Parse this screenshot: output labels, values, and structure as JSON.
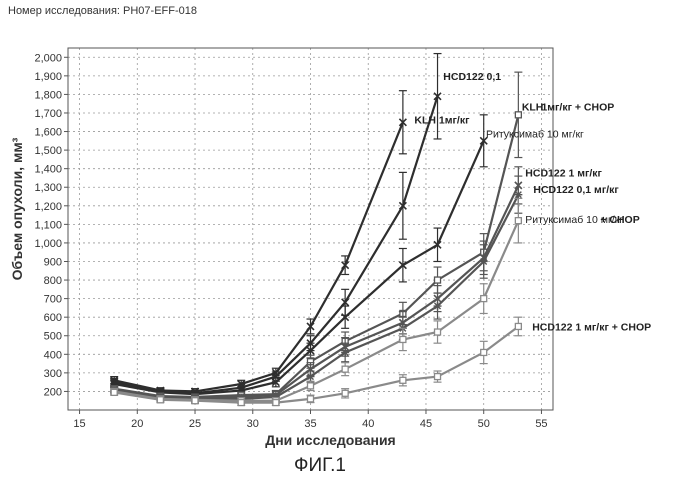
{
  "header": {
    "study_number": "Номер исследования: PH07-EFF-018"
  },
  "figure_caption": "ФИГ.1",
  "colors": {
    "dark": "#2e2e2e",
    "mid": "#555555",
    "light": "#8a8a8a",
    "grid": "#9a9a9a"
  },
  "chart_data": {
    "type": "line",
    "title": "",
    "xlabel": "Дни исследования",
    "ylabel": "Объем опухоли, мм³",
    "xlim": [
      14,
      56
    ],
    "ylim": [
      100,
      2050
    ],
    "xticks": [
      15,
      20,
      25,
      30,
      35,
      40,
      45,
      50,
      55
    ],
    "yticks": [
      200,
      300,
      400,
      500,
      600,
      700,
      800,
      900,
      1000,
      1100,
      1200,
      1300,
      1400,
      1500,
      1600,
      1700,
      1800,
      1900,
      2000
    ],
    "ytick_labels": [
      "200",
      "300",
      "400",
      "500",
      "600",
      "700",
      "800",
      "900",
      "1,000",
      "1,100",
      "1,200",
      "1,300",
      "1,400",
      "1,500",
      "1,600",
      "1,700",
      "1,800",
      "1,900",
      "2,000"
    ],
    "grid": true,
    "x": [
      18,
      22,
      25,
      29,
      32,
      35,
      38,
      43,
      46,
      50,
      53
    ],
    "series": [
      {
        "name": "KLH 1мг/кг",
        "tone": "dark",
        "values": [
          260,
          205,
          200,
          240,
          300,
          550,
          880,
          1650,
          null,
          null,
          null
        ],
        "errors": [
          20,
          15,
          15,
          20,
          25,
          40,
          50,
          170,
          null,
          null,
          null
        ]
      },
      {
        "name": "HCD122 0,1",
        "tone": "dark",
        "values": [
          250,
          200,
          190,
          220,
          280,
          460,
          680,
          1200,
          1790,
          null,
          null
        ],
        "errors": [
          20,
          15,
          15,
          20,
          25,
          40,
          70,
          180,
          230,
          null,
          null
        ]
      },
      {
        "name": "Ритуксимаб 10 мг/кг",
        "tone": "dark",
        "values": [
          240,
          195,
          185,
          205,
          250,
          420,
          600,
          880,
          990,
          1550,
          null
        ],
        "errors": [
          20,
          15,
          15,
          20,
          25,
          40,
          60,
          90,
          90,
          140,
          null
        ]
      },
      {
        "name": "KLH 1мг/кг + CHOP",
        "tone": "mid",
        "values": [
          215,
          175,
          170,
          180,
          185,
          360,
          470,
          620,
          800,
          950,
          1690
        ],
        "errors": [
          15,
          15,
          15,
          15,
          20,
          35,
          50,
          60,
          70,
          100,
          230
        ]
      },
      {
        "name": "HCD122 1 мг/кг",
        "tone": "mid",
        "values": [
          210,
          170,
          165,
          170,
          180,
          320,
          440,
          570,
          700,
          920,
          1310
        ],
        "errors": [
          15,
          15,
          15,
          15,
          20,
          35,
          50,
          60,
          70,
          90,
          100
        ]
      },
      {
        "name": "HCD122 0,1 мг/кг",
        "tone": "mid",
        "values": [
          205,
          165,
          160,
          160,
          170,
          280,
          410,
          540,
          660,
          900,
          1260
        ],
        "errors": [
          15,
          15,
          15,
          15,
          20,
          30,
          50,
          60,
          70,
          90,
          100
        ]
      },
      {
        "name": "Ритуксимаб 10 мг/кг + CHOP",
        "tone": "light",
        "values": [
          200,
          160,
          155,
          150,
          150,
          230,
          320,
          480,
          520,
          700,
          1120
        ],
        "errors": [
          15,
          15,
          15,
          15,
          15,
          25,
          35,
          60,
          60,
          80,
          120
        ]
      },
      {
        "name": "HCD122 1 мг/кг + CHOP",
        "tone": "light",
        "values": [
          195,
          155,
          150,
          140,
          140,
          160,
          190,
          260,
          280,
          410,
          550
        ],
        "errors": [
          15,
          15,
          15,
          15,
          15,
          20,
          25,
          30,
          30,
          60,
          50
        ]
      }
    ],
    "annotations": [
      {
        "text": "HCD122 0,1",
        "x": 46.5,
        "y": 1900
      },
      {
        "text": "KLH 1мг/кг",
        "x": 44.0,
        "y": 1665
      },
      {
        "text": "KLH",
        "x": 53.3,
        "y": 1735
      },
      {
        "text": "1мг/кг + CHOP",
        "x": 55.0,
        "y": 1735
      },
      {
        "text": "Ритуксимаб 10 мг/кг",
        "x": 50.2,
        "y": 1590
      },
      {
        "text": "HCD122 1 мг/кг",
        "x": 53.6,
        "y": 1380
      },
      {
        "text": "HCD122 0,1 мг/кг",
        "x": 54.3,
        "y": 1290
      },
      {
        "text": "Ритуксимаб 10 мг/кг",
        "x": 53.6,
        "y": 1130
      },
      {
        "text": "+ CHOP",
        "x": 60.1,
        "y": 1130
      },
      {
        "text": "HCD122  1 мг/кг + CHOP",
        "x": 54.2,
        "y": 550
      }
    ]
  }
}
